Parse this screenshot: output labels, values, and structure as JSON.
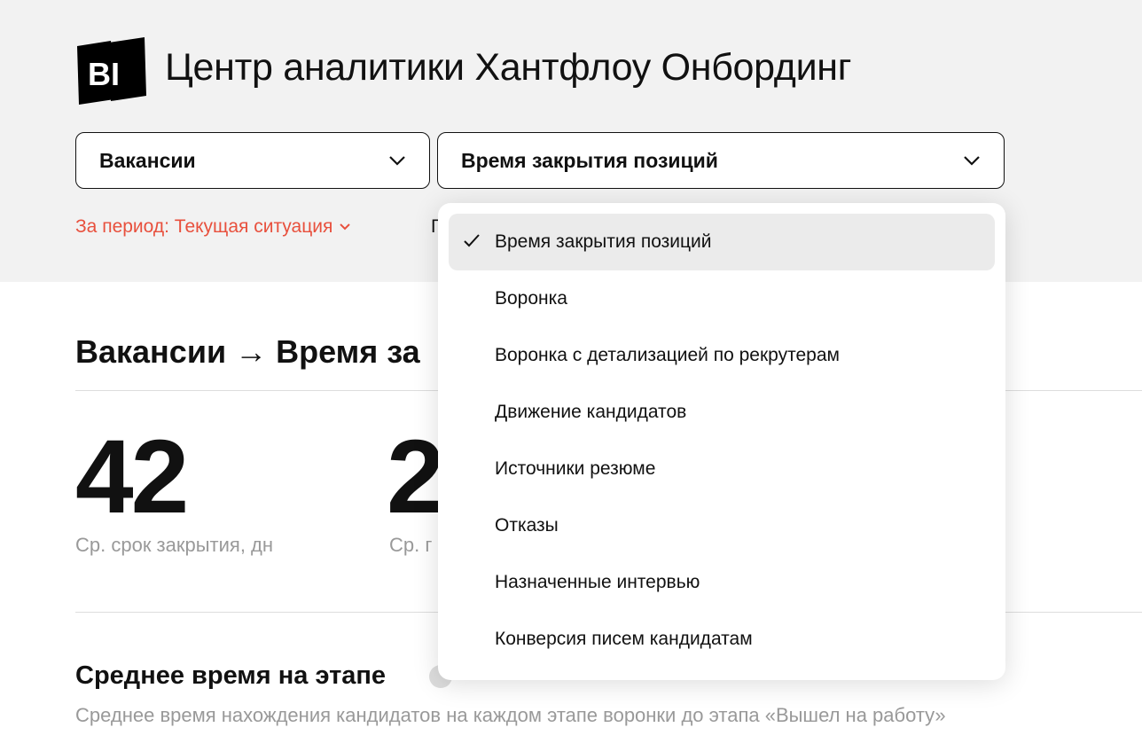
{
  "header": {
    "logo_text": "BI",
    "title": "Центр аналитики Хантфлоу Онбординг"
  },
  "filters": {
    "category": "Вакансии",
    "report": "Время закрытия позиций",
    "period": "За период: Текущая ситуация",
    "partial_next": "Г"
  },
  "main": {
    "heading": "Вакансии → Время за",
    "metrics": [
      {
        "value": "42",
        "label": "Ср. срок закрытия, дн"
      },
      {
        "value": "2",
        "label": "Ср. г"
      }
    ],
    "section_title": "Среднее время на этапе",
    "section_desc": "Среднее время нахождения кандидатов на каждом этапе воронки до этапа «Вышел на работу»"
  },
  "dropdown": {
    "selected_index": 0,
    "items": [
      {
        "label": "Время закрытия позиций"
      },
      {
        "label": "Воронка"
      },
      {
        "label": "Воронка с детализацией по рекрутерам"
      },
      {
        "label": "Движение кандидатов"
      },
      {
        "label": "Источники резюме"
      },
      {
        "label": "Отказы"
      },
      {
        "label": "Назначенные интервью"
      },
      {
        "label": "Конверсия писем кандидатам"
      }
    ]
  },
  "colors": {
    "accent": "#e8503d",
    "header_bg": "#f2f2f2"
  }
}
